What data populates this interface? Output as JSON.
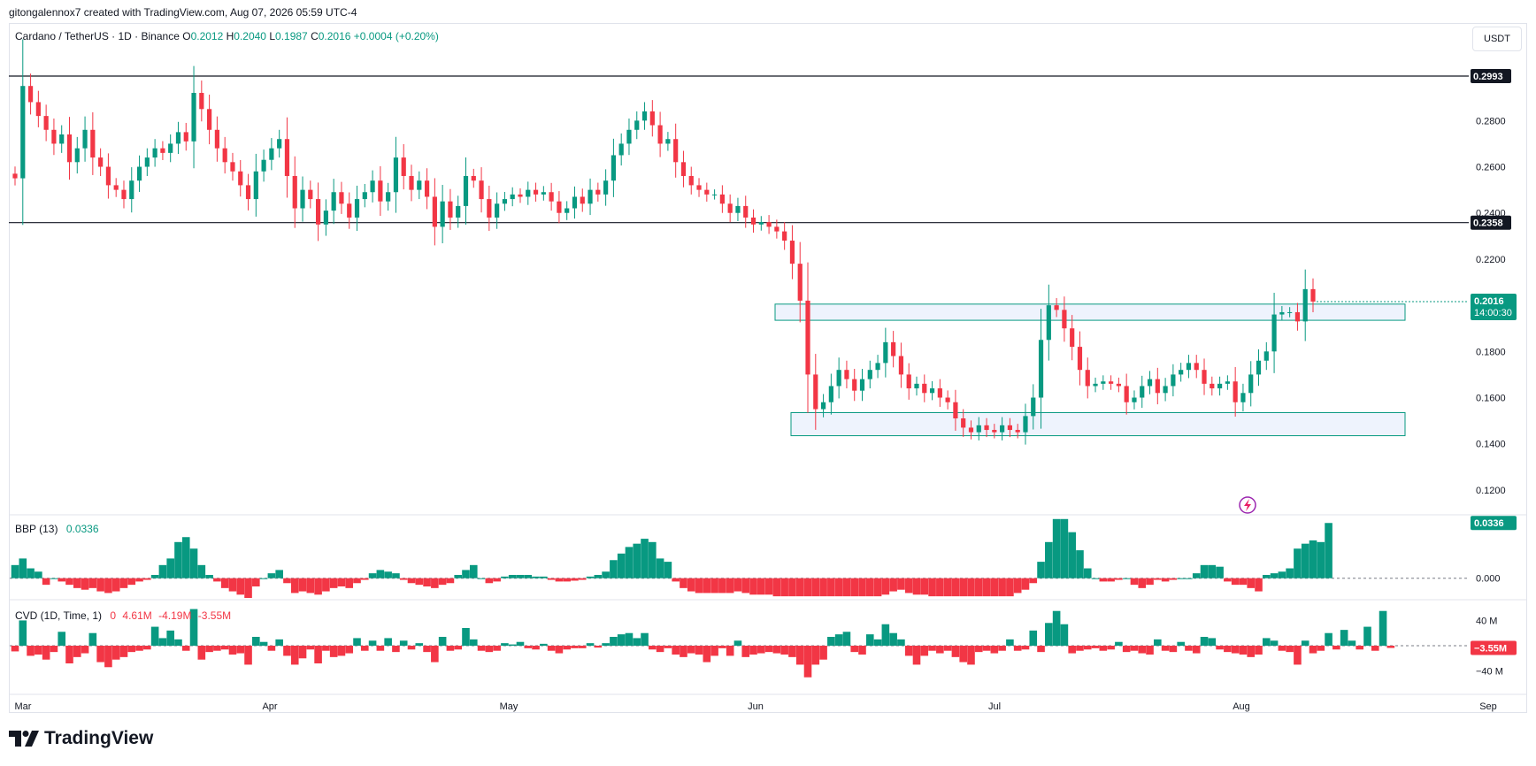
{
  "header": {
    "attribution": "gitongalennox7 created with TradingView.com, Aug 07, 2026 05:59 UTC-4"
  },
  "legend": {
    "symbol": "Cardano / TetherUS · 1D · Binance",
    "o_label": "O",
    "o_value": "0.2012",
    "h_label": "H",
    "h_value": "0.2040",
    "l_label": "L",
    "l_value": "0.1987",
    "c_label": "C",
    "c_value": "0.2016",
    "change": "+0.0004 (+0.20%)"
  },
  "currency": "USDT",
  "brand": {
    "name": "TradingView"
  },
  "colors": {
    "up": "#089981",
    "down": "#f23645",
    "zone_fill": "#eef3fd",
    "zone_stroke": "#089981",
    "line": "#131722",
    "grid": "#f0f3fa",
    "axis_text": "#131722"
  },
  "chart_data": [
    {
      "type": "candlestick",
      "ylim": [
        0.11,
        0.315
      ],
      "y_ticks": [
        "0.2800",
        "0.2600",
        "0.2400",
        "0.2200",
        "0.1800",
        "0.1600",
        "0.1400",
        "0.1200"
      ],
      "y_tick_values": [
        0.28,
        0.26,
        0.24,
        0.22,
        0.18,
        0.16,
        0.14,
        0.12
      ],
      "x_labels": [
        "Mar",
        "Apr",
        "May",
        "Jun",
        "Jul",
        "Aug",
        "Sep"
      ],
      "x_label_days": [
        1,
        32,
        62,
        93,
        123,
        154,
        185
      ],
      "start_date": "2026-02-25",
      "end_date": "2026-08-07",
      "horizontal_levels": [
        {
          "value": 0.2993,
          "label": "0.2993"
        },
        {
          "value": 0.2358,
          "label": "0.2358"
        }
      ],
      "zones": [
        {
          "date_from": "2026-06-01",
          "date_to": "2026-09-15",
          "top": 0.2005,
          "bottom": 0.1935
        },
        {
          "date_from": "2026-06-03",
          "date_to": "2026-09-15",
          "top": 0.1535,
          "bottom": 0.1435
        }
      ],
      "last_price": {
        "value": 0.2016,
        "label": "0.2016",
        "countdown": "14:00:30"
      },
      "close": [
        0.255,
        0.295,
        0.288,
        0.282,
        0.276,
        0.27,
        0.274,
        0.262,
        0.268,
        0.276,
        0.264,
        0.26,
        0.252,
        0.25,
        0.246,
        0.254,
        0.26,
        0.264,
        0.268,
        0.266,
        0.27,
        0.275,
        0.271,
        0.292,
        0.285,
        0.276,
        0.268,
        0.262,
        0.258,
        0.252,
        0.246,
        0.258,
        0.263,
        0.268,
        0.272,
        0.256,
        0.242,
        0.25,
        0.246,
        0.235,
        0.241,
        0.249,
        0.244,
        0.238,
        0.246,
        0.249,
        0.254,
        0.245,
        0.249,
        0.264,
        0.256,
        0.25,
        0.254,
        0.247,
        0.234,
        0.245,
        0.238,
        0.243,
        0.256,
        0.254,
        0.246,
        0.238,
        0.244,
        0.246,
        0.248,
        0.247,
        0.25,
        0.248,
        0.249,
        0.245,
        0.24,
        0.242,
        0.247,
        0.244,
        0.25,
        0.248,
        0.254,
        0.265,
        0.27,
        0.276,
        0.28,
        0.284,
        0.278,
        0.27,
        0.272,
        0.262,
        0.256,
        0.252,
        0.25,
        0.248,
        0.248,
        0.244,
        0.24,
        0.243,
        0.238,
        0.235,
        0.236,
        0.234,
        0.232,
        0.228,
        0.218,
        0.202,
        0.17,
        0.155,
        0.158,
        0.165,
        0.172,
        0.168,
        0.163,
        0.168,
        0.172,
        0.175,
        0.184,
        0.178,
        0.17,
        0.164,
        0.166,
        0.162,
        0.164,
        0.16,
        0.158,
        0.151,
        0.147,
        0.145,
        0.148,
        0.146,
        0.145,
        0.148,
        0.146,
        0.145,
        0.152,
        0.16,
        0.185,
        0.2,
        0.198,
        0.19,
        0.182,
        0.172,
        0.165,
        0.166,
        0.167,
        0.166,
        0.165,
        0.158,
        0.16,
        0.165,
        0.168,
        0.162,
        0.165,
        0.17,
        0.172,
        0.175,
        0.172,
        0.166,
        0.164,
        0.166,
        0.167,
        0.158,
        0.162,
        0.17,
        0.176,
        0.18,
        0.196,
        0.197,
        0.197,
        0.193,
        0.207,
        0.2016
      ],
      "indicators": [
        {
          "name": "BBP (13)",
          "value": "0.0336",
          "ylim": [
            -0.012,
            0.0375
          ],
          "zero_label": "0.000",
          "values": [
            0.008,
            0.012,
            0.006,
            0.004,
            -0.004,
            0.0,
            -0.002,
            -0.004,
            -0.006,
            -0.007,
            -0.006,
            -0.008,
            -0.009,
            -0.008,
            -0.006,
            -0.004,
            -0.002,
            -0.001,
            0.002,
            0.008,
            0.012,
            0.022,
            0.025,
            0.018,
            0.008,
            0.002,
            -0.002,
            -0.006,
            -0.008,
            -0.01,
            -0.012,
            -0.005,
            0.0,
            0.003,
            0.005,
            -0.003,
            -0.009,
            -0.008,
            -0.009,
            -0.01,
            -0.008,
            -0.006,
            -0.005,
            -0.006,
            -0.003,
            -0.001,
            0.003,
            0.005,
            0.004,
            0.003,
            -0.001,
            -0.003,
            -0.004,
            -0.005,
            -0.006,
            -0.004,
            -0.003,
            0.002,
            0.005,
            0.008,
            0.0,
            -0.003,
            -0.002,
            0.001,
            0.002,
            0.002,
            0.002,
            0.001,
            0.001,
            -0.001,
            -0.002,
            -0.002,
            -0.0015,
            -0.001,
            0.001,
            0.002,
            0.004,
            0.011,
            0.015,
            0.019,
            0.021,
            0.024,
            0.022,
            0.012,
            0.01,
            -0.002,
            -0.006,
            -0.008,
            -0.009,
            -0.009,
            -0.009,
            -0.009,
            -0.009,
            -0.008,
            -0.009,
            -0.01,
            -0.01,
            -0.01,
            -0.011,
            -0.011,
            -0.011,
            -0.011,
            -0.011,
            -0.011,
            -0.011,
            -0.011,
            -0.011,
            -0.011,
            -0.011,
            -0.011,
            -0.011,
            -0.011,
            -0.01,
            -0.008,
            -0.007,
            -0.009,
            -0.01,
            -0.01,
            -0.011,
            -0.011,
            -0.011,
            -0.011,
            -0.011,
            -0.011,
            -0.011,
            -0.011,
            -0.011,
            -0.011,
            -0.011,
            -0.009,
            -0.007,
            -0.003,
            0.01,
            0.022,
            0.036,
            0.036,
            0.028,
            0.017,
            0.006,
            0.0,
            -0.002,
            -0.002,
            -0.001,
            0.0,
            -0.004,
            -0.006,
            -0.004,
            -0.001,
            -0.002,
            -0.001,
            0.0,
            0.0,
            0.003,
            0.008,
            0.008,
            0.007,
            -0.002,
            -0.004,
            -0.004,
            -0.006,
            -0.008,
            0.002,
            0.003,
            0.004,
            0.006,
            0.018,
            0.021,
            0.023,
            0.022,
            0.0336
          ],
          "last_value_label": "0.0336"
        },
        {
          "name": "CVD (1D, Time, 1)",
          "open": "0",
          "high": "4.61M",
          "low": "-4.19M",
          "close": "-3.55M",
          "ylim": [
            -70,
            70
          ],
          "ticks": [
            "40 M",
            "−40 M"
          ],
          "tick_values": [
            40,
            -40
          ],
          "last_value_label": "−3.55M",
          "last_value": -3.55,
          "values": [
            -9,
            40,
            -16,
            -14,
            -22,
            -10,
            22,
            -28,
            -18,
            -12,
            20,
            -26,
            -34,
            -22,
            -18,
            -10,
            -8,
            -6,
            30,
            12,
            24,
            10,
            -8,
            58,
            -22,
            -10,
            -8,
            -6,
            -14,
            -12,
            -30,
            14,
            6,
            -8,
            10,
            -16,
            -30,
            -20,
            -6,
            -28,
            -8,
            -18,
            -16,
            -12,
            12,
            -8,
            8,
            -8,
            12,
            -10,
            8,
            -6,
            4,
            -10,
            -26,
            14,
            -8,
            -6,
            28,
            10,
            -8,
            -10,
            -8,
            4,
            2,
            6,
            -4,
            -6,
            3,
            -8,
            -12,
            -6,
            -4,
            -4,
            4,
            -3,
            4,
            14,
            18,
            20,
            12,
            20,
            -6,
            -10,
            -4,
            -14,
            -18,
            -12,
            -14,
            -26,
            -16,
            -4,
            -16,
            8,
            -18,
            -14,
            -12,
            -10,
            -12,
            -14,
            -18,
            -30,
            -50,
            -30,
            -22,
            14,
            18,
            22,
            -10,
            -14,
            18,
            10,
            34,
            20,
            10,
            -16,
            -30,
            -16,
            -8,
            -12,
            -8,
            -18,
            -26,
            -30,
            -10,
            -8,
            -12,
            -8,
            10,
            -8,
            -6,
            24,
            -10,
            36,
            55,
            34,
            -12,
            -8,
            -6,
            -4,
            -8,
            -6,
            6,
            -10,
            -8,
            -12,
            -14,
            10,
            -8,
            -10,
            6,
            -8,
            -12,
            14,
            12,
            -6,
            -10,
            -12,
            -14,
            -18,
            -14,
            12,
            8,
            -8,
            -10,
            -30,
            8,
            -12,
            -8,
            20,
            -6,
            25,
            8,
            -6,
            30,
            -8,
            55,
            -3.55
          ]
        }
      ]
    }
  ]
}
